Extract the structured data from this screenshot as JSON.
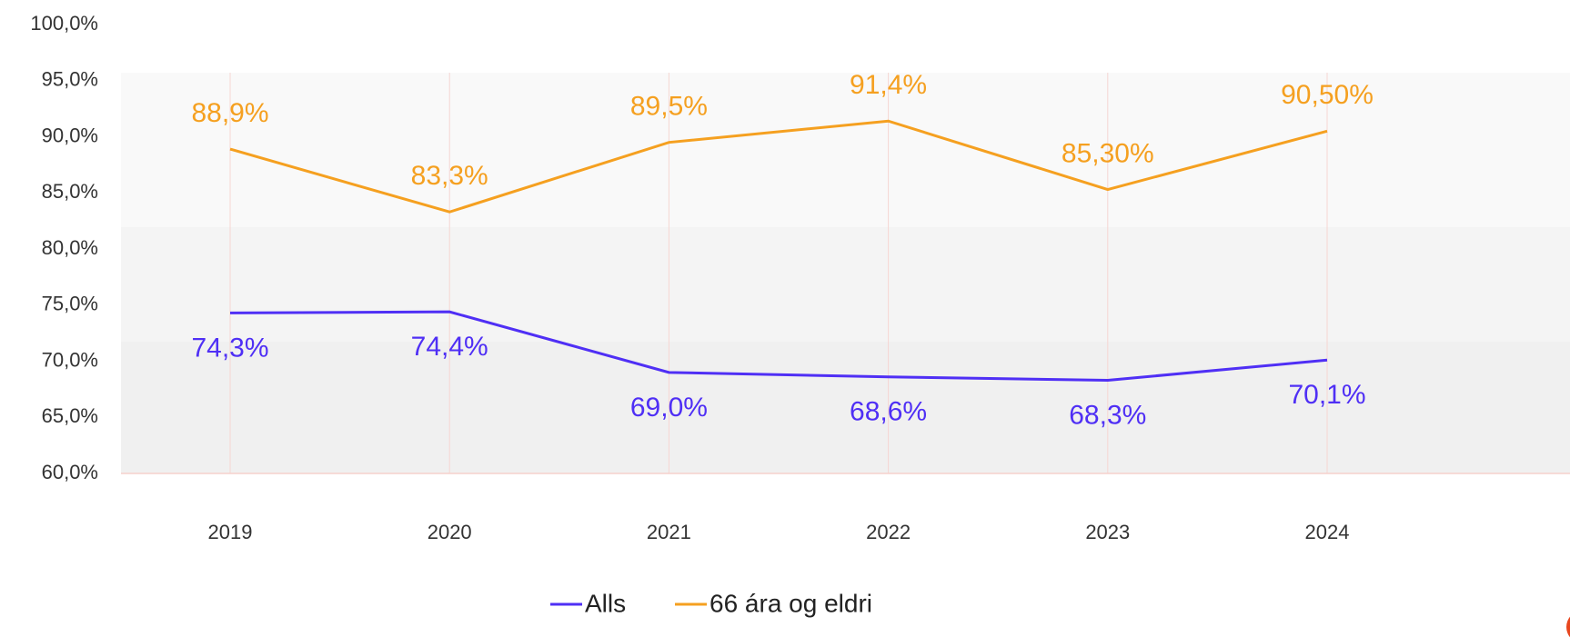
{
  "chart_data": {
    "type": "line",
    "categories": [
      "2019",
      "2020",
      "2021",
      "2022",
      "2023",
      "2024"
    ],
    "series": [
      {
        "name": "Alls",
        "color": "#4f2ff5",
        "values": [
          74.3,
          74.4,
          69.0,
          68.6,
          68.3,
          70.1
        ],
        "value_labels": [
          "74,3%",
          "74,4%",
          "69,0%",
          "68,6%",
          "68,3%",
          "70,1%"
        ]
      },
      {
        "name": "66 ára og eldri",
        "color": "#f5a020",
        "values": [
          88.9,
          83.3,
          89.5,
          91.4,
          85.3,
          90.5
        ],
        "value_labels": [
          "88,9%",
          "83,3%",
          "89,5%",
          "91,4%",
          "85,30%",
          "90,50%"
        ]
      }
    ],
    "ylim": [
      60,
      100
    ],
    "yticks": [
      {
        "value": 60,
        "label": "60,0%"
      },
      {
        "value": 65,
        "label": "65,0%"
      },
      {
        "value": 70,
        "label": "70,0%"
      },
      {
        "value": 75,
        "label": "75,0%"
      },
      {
        "value": 80,
        "label": "80,0%"
      },
      {
        "value": 85,
        "label": "85,0%"
      },
      {
        "value": 90,
        "label": "90,0%"
      },
      {
        "value": 95,
        "label": "95,0%"
      },
      {
        "value": 100,
        "label": "100,0%"
      }
    ],
    "grid": false,
    "legend": "bottom"
  }
}
